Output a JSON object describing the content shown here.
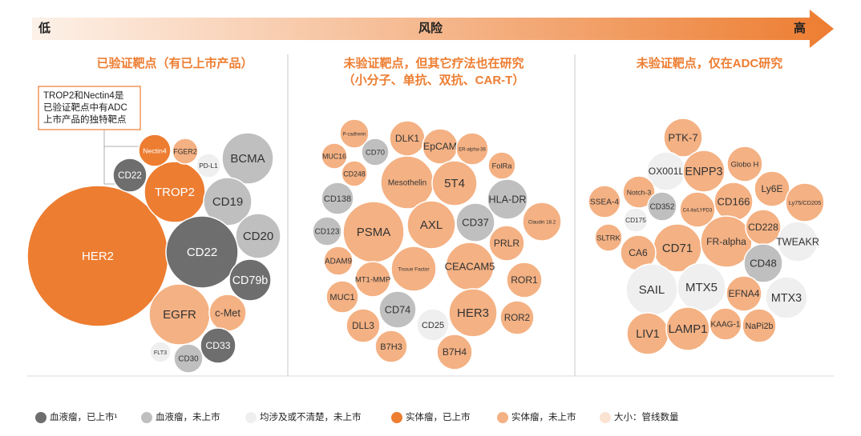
{
  "header": {
    "low": "低",
    "risk": "风险",
    "high": "高"
  },
  "callout": [
    "TROP2和Nectin4是",
    "已验证靶点中有ADC",
    "上市产品的独特靶点"
  ],
  "columns": [
    {
      "title": [
        "已验证靶点（有已上市产品）"
      ],
      "bubbles": [
        {
          "label": "HER2",
          "color": "#ed7d31"
        },
        {
          "label": "TROP2",
          "color": "#ed7d31"
        },
        {
          "label": "Nectin4",
          "color": "#ed7d31"
        },
        {
          "label": "FGER2",
          "color": "#f4b183"
        },
        {
          "label": "PD-L1",
          "color": "#efefef"
        },
        {
          "label": "BCMA",
          "color": "#bfbfbf"
        },
        {
          "label": "CD22",
          "color": "#6e6e6e"
        },
        {
          "label": "CD19",
          "color": "#bfbfbf"
        },
        {
          "label": "CD20",
          "color": "#bfbfbf"
        },
        {
          "label": "CD22",
          "color": "#6e6e6e"
        },
        {
          "label": "CD79b",
          "color": "#6e6e6e"
        },
        {
          "label": "EGFR",
          "color": "#f4b183"
        },
        {
          "label": "c-Met",
          "color": "#f4b183"
        },
        {
          "label": "FLT3",
          "color": "#efefef"
        },
        {
          "label": "CD30",
          "color": "#bfbfbf"
        },
        {
          "label": "CD33",
          "color": "#6e6e6e"
        }
      ]
    },
    {
      "title": [
        "未验证靶点，但其它疗法也在研究",
        "（小分子、单抗、双抗、CAR-T）"
      ],
      "bubbles": [
        {
          "label": "P-cadherin",
          "color": "#f4b183"
        },
        {
          "label": "MUC16",
          "color": "#f4b183"
        },
        {
          "label": "CD70",
          "color": "#bfbfbf"
        },
        {
          "label": "DLK1",
          "color": "#f4b183"
        },
        {
          "label": "EpCAM",
          "color": "#f4b183"
        },
        {
          "label": "ER-alpha-36",
          "color": "#f4b183"
        },
        {
          "label": "FolRa",
          "color": "#f4b183"
        },
        {
          "label": "CD248",
          "color": "#f4b183"
        },
        {
          "label": "Mesothelin",
          "color": "#f4b183"
        },
        {
          "label": "5T4",
          "color": "#f4b183"
        },
        {
          "label": "HLA-DR",
          "color": "#bfbfbf"
        },
        {
          "label": "CD138",
          "color": "#bfbfbf"
        },
        {
          "label": "PSMA",
          "color": "#f4b183"
        },
        {
          "label": "AXL",
          "color": "#f4b183"
        },
        {
          "label": "CD37",
          "color": "#bfbfbf"
        },
        {
          "label": "Claudin 18.2",
          "color": "#f4b183"
        },
        {
          "label": "CD123",
          "color": "#bfbfbf"
        },
        {
          "label": "PRLR",
          "color": "#f4b183"
        },
        {
          "label": "ADAM9",
          "color": "#f4b183"
        },
        {
          "label": "MT1-MMP",
          "color": "#f4b183"
        },
        {
          "label": "Tissue Factor",
          "color": "#f4b183"
        },
        {
          "label": "CEACAM5",
          "color": "#f4b183"
        },
        {
          "label": "ROR1",
          "color": "#f4b183"
        },
        {
          "label": "MUC1",
          "color": "#f4b183"
        },
        {
          "label": "CD74",
          "color": "#bfbfbf"
        },
        {
          "label": "HER3",
          "color": "#f4b183"
        },
        {
          "label": "ROR2",
          "color": "#f4b183"
        },
        {
          "label": "DLL3",
          "color": "#f4b183"
        },
        {
          "label": "CD25",
          "color": "#efefef"
        },
        {
          "label": "B7H3",
          "color": "#f4b183"
        },
        {
          "label": "B7H4",
          "color": "#f4b183"
        }
      ]
    },
    {
      "title": [
        "未验证靶点，仅在ADC研究"
      ],
      "bubbles": [
        {
          "label": "PTK-7",
          "color": "#f4b183"
        },
        {
          "label": "OX001L",
          "color": "#efefef"
        },
        {
          "label": "ENPP3",
          "color": "#f4b183"
        },
        {
          "label": "Globo H",
          "color": "#f4b183"
        },
        {
          "label": "Notch-3",
          "color": "#f4b183"
        },
        {
          "label": "SSEA-4",
          "color": "#f4b183"
        },
        {
          "label": "Ly6E",
          "color": "#f4b183"
        },
        {
          "label": "CD352",
          "color": "#bfbfbf"
        },
        {
          "label": "C4.4a/LYPD3",
          "color": "#f4b183"
        },
        {
          "label": "CD166",
          "color": "#f4b183"
        },
        {
          "label": "Ly75/CD205",
          "color": "#f4b183"
        },
        {
          "label": "CD175",
          "color": "#efefef"
        },
        {
          "label": "SLTRK",
          "color": "#f4b183"
        },
        {
          "label": "CD71",
          "color": "#f4b183"
        },
        {
          "label": "FR-alpha",
          "color": "#f4b183"
        },
        {
          "label": "CD228",
          "color": "#f4b183"
        },
        {
          "label": "TWEAKR",
          "color": "#efefef"
        },
        {
          "label": "CA6",
          "color": "#f4b183"
        },
        {
          "label": "CD48",
          "color": "#bfbfbf"
        },
        {
          "label": "SAIL",
          "color": "#efefef"
        },
        {
          "label": "MTX5",
          "color": "#efefef"
        },
        {
          "label": "EFNA4",
          "color": "#f4b183"
        },
        {
          "label": "MTX3",
          "color": "#efefef"
        },
        {
          "label": "LIV1",
          "color": "#f4b183"
        },
        {
          "label": "LAMP1",
          "color": "#f4b183"
        },
        {
          "label": "KAAG-1",
          "color": "#f4b183"
        },
        {
          "label": "NaPi2b",
          "color": "#f4b183"
        }
      ]
    }
  ],
  "legend": [
    {
      "label": "血液瘤，已上市¹",
      "color": "#6e6e6e"
    },
    {
      "label": "血液瘤，未上市",
      "color": "#bfbfbf"
    },
    {
      "label": "均涉及或不清楚，未上市",
      "color": "#efefef"
    },
    {
      "label": "实体瘤，已上市",
      "color": "#ed7d31"
    },
    {
      "label": "实体瘤，未上市",
      "color": "#f4b183"
    },
    {
      "label": "大小：管线数量",
      "color": "#fbe3d2"
    }
  ]
}
